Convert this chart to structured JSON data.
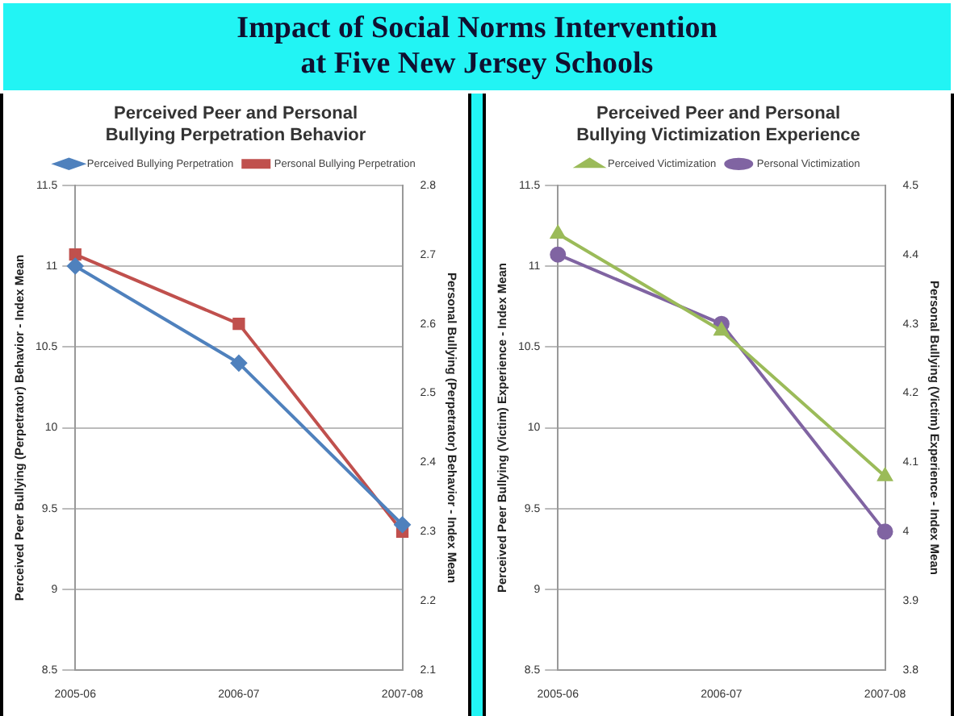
{
  "chart_data": [
    {
      "type": "other",
      "title": "Impact of Social Norms Intervention\nat Five New Jersey Schools"
    },
    {
      "type": "line",
      "title": "Perceived Peer and Personal Bullying Perpetration Behavior",
      "categories": [
        "2005-06",
        "2006-07",
        "2007-08"
      ],
      "ylabel": "Perceived Peer Bullying (Perpetrator) Behavior - Index Mean",
      "y2label": "Personal Bullying (Perpetrator) Behavior - Index Mean",
      "ylim": [
        8.5,
        11.5
      ],
      "yticks": [
        8.5,
        9,
        9.5,
        10,
        10.5,
        11,
        11.5
      ],
      "y2lim": [
        2.1,
        2.8
      ],
      "y2ticks": [
        2.1,
        2.2,
        2.3,
        2.4,
        2.5,
        2.6,
        2.7,
        2.8
      ],
      "grid": "y",
      "legend": "top",
      "series": [
        {
          "name": "Perceived Bullying Perpetration",
          "color": "#4f81bd",
          "marker": "diamond",
          "values": [
            11.0,
            10.4,
            9.4
          ]
        },
        {
          "name": "Personal Bullying Perpetration",
          "color": "#c0504d",
          "marker": "square",
          "axis": "y2",
          "values": [
            2.7,
            2.6,
            2.3
          ]
        }
      ]
    },
    {
      "type": "line",
      "title": "Perceived Peer and Personal Bullying Victimization Experience",
      "categories": [
        "2005-06",
        "2006-07",
        "2007-08"
      ],
      "ylabel": "Perceived Peer Bullying (Victim) Experience - Index Mean",
      "y2label": "Personal Bullying (Victim) Experience - Index Mean",
      "ylim": [
        8.5,
        11.5
      ],
      "yticks": [
        8.5,
        9,
        9.5,
        10,
        10.5,
        11,
        11.5
      ],
      "y2lim": [
        3.8,
        4.5
      ],
      "y2ticks": [
        3.8,
        3.9,
        4,
        4.1,
        4.2,
        4.3,
        4.4,
        4.5
      ],
      "grid": "y",
      "legend": "top",
      "series": [
        {
          "name": "Perceived Victimization",
          "color": "#9bbb59",
          "marker": "triangle",
          "values": [
            11.2,
            10.6,
            9.7
          ]
        },
        {
          "name": "Personal Victimization",
          "color": "#8064a2",
          "marker": "circle",
          "axis": "y2",
          "values": [
            4.4,
            4.3,
            4.0
          ]
        }
      ]
    }
  ]
}
